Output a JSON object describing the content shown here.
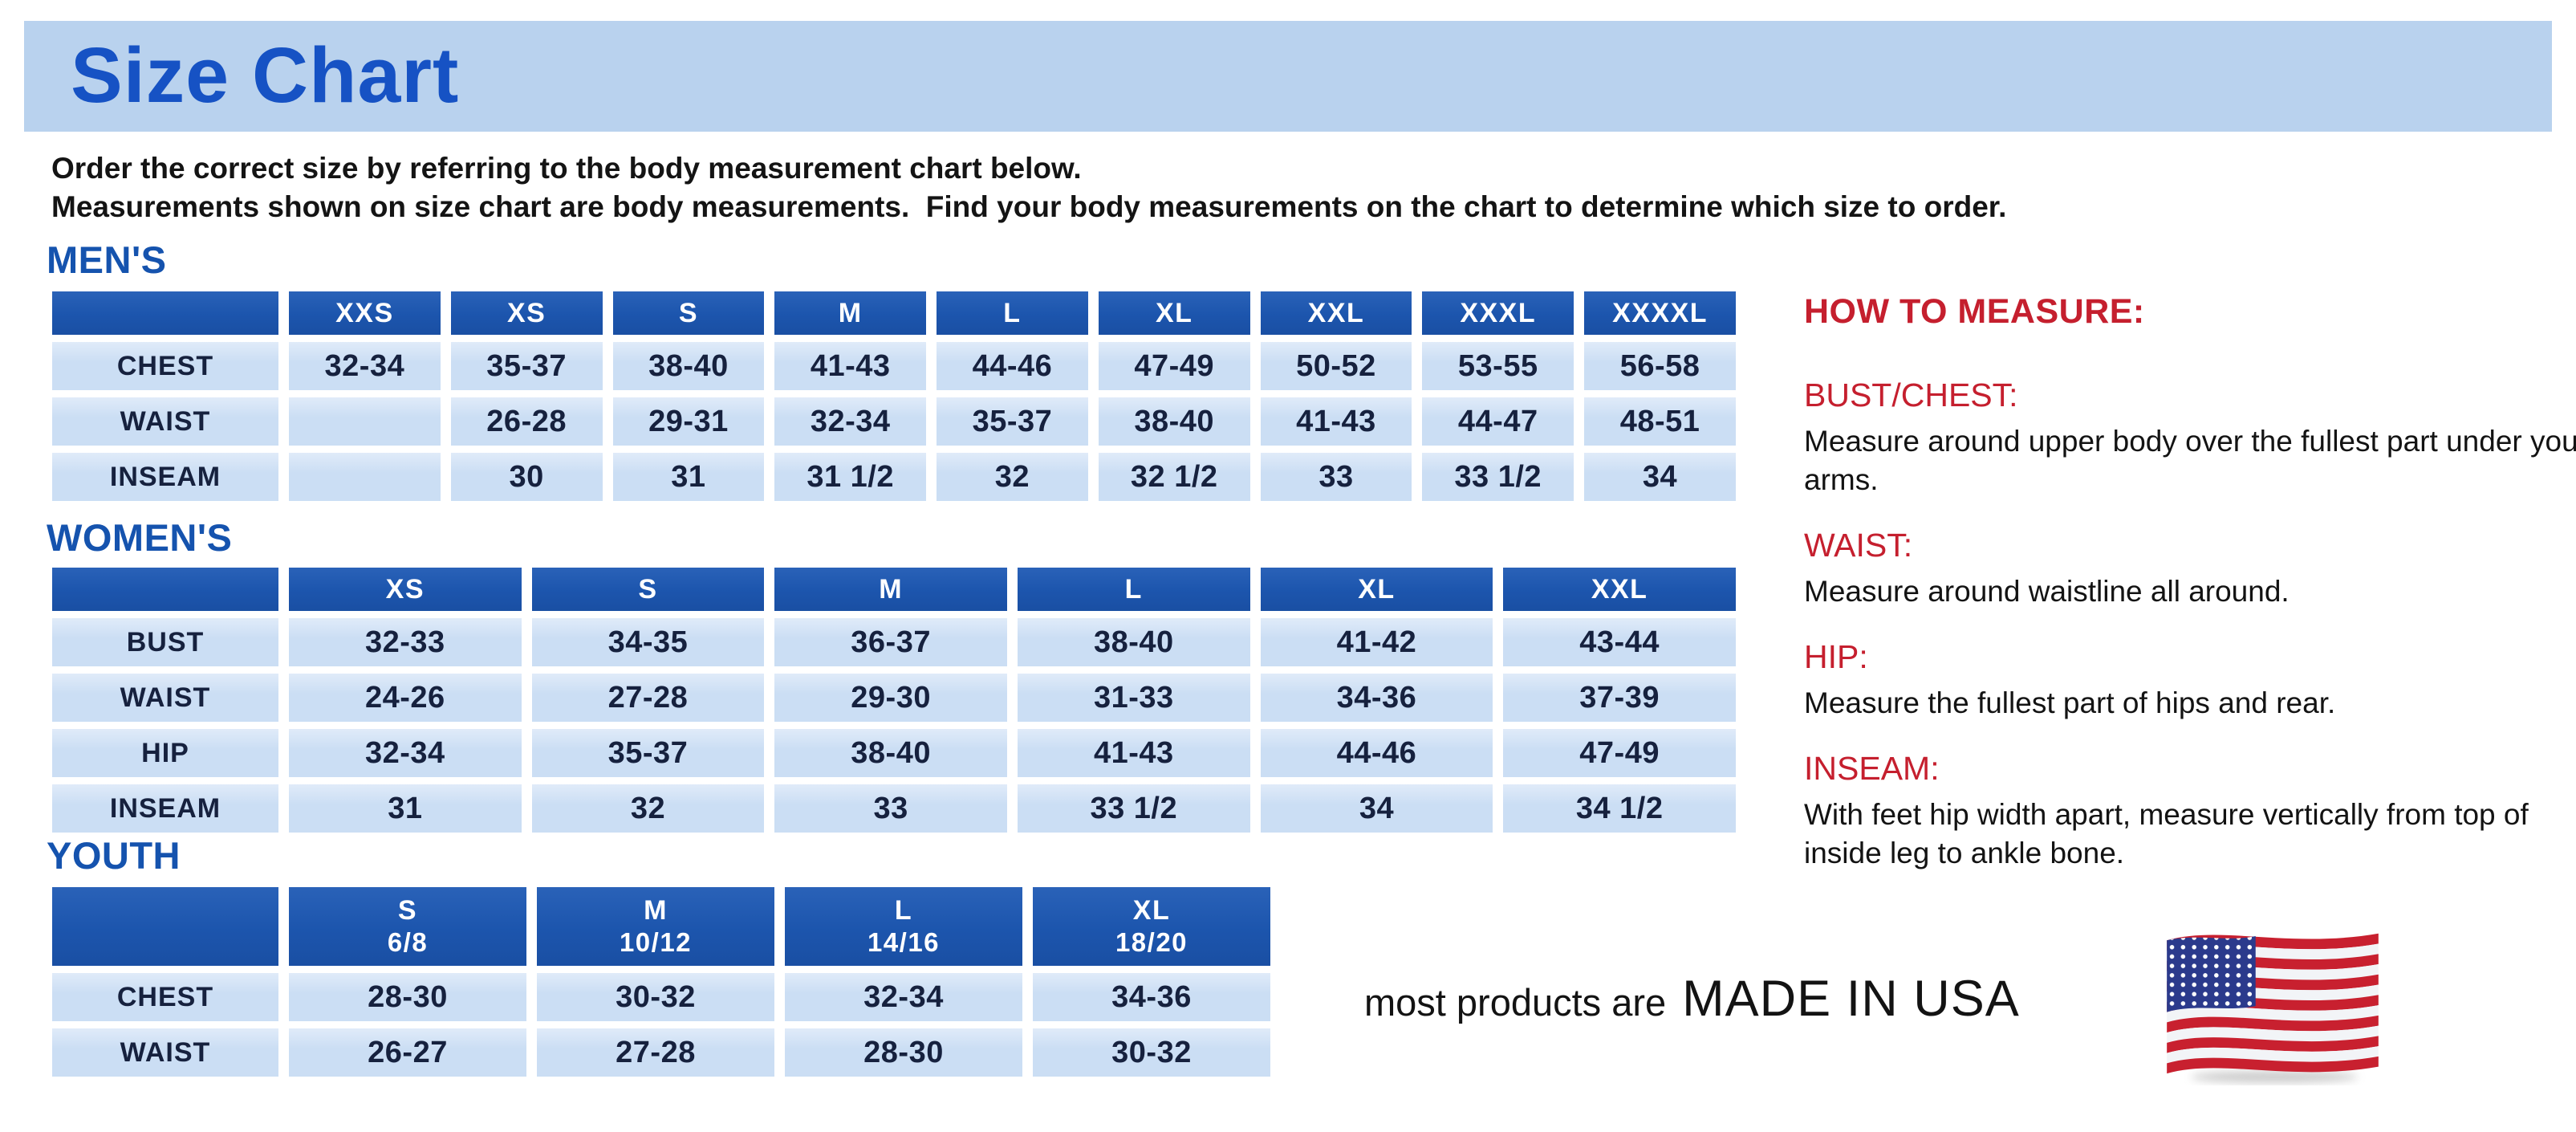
{
  "page": {
    "title": "Size Chart",
    "intro_line1": "Order the correct size by referring to the body measurement chart below.",
    "intro_line2": "Measurements shown on size chart are body measurements.  Find your body measurements on the chart to determine which size to order."
  },
  "colors": {
    "banner_bg": "#b9d2ee",
    "title_blue": "#1652c4",
    "heading_blue": "#1553ae",
    "header_bg": "#1c55ad",
    "cell_bg": "#cbdef4",
    "cell_bg_light": "#e0ebf9",
    "cell_text": "#16213e",
    "red": "#c51f2e",
    "flag_red": "#c8202f",
    "flag_navy": "#2b3a8c"
  },
  "tables": {
    "mens": {
      "heading": "MEN'S",
      "columns": [
        "XXS",
        "XS",
        "S",
        "M",
        "L",
        "XL",
        "XXL",
        "XXXL",
        "XXXXL"
      ],
      "rows": [
        {
          "label": "CHEST",
          "values": [
            "32-34",
            "35-37",
            "38-40",
            "41-43",
            "44-46",
            "47-49",
            "50-52",
            "53-55",
            "56-58"
          ]
        },
        {
          "label": "WAIST",
          "values": [
            "",
            "26-28",
            "29-31",
            "32-34",
            "35-37",
            "38-40",
            "41-43",
            "44-47",
            "48-51"
          ]
        },
        {
          "label": "INSEAM",
          "values": [
            "",
            "30",
            "31",
            "31 1/2",
            "32",
            "32 1/2",
            "33",
            "33 1/2",
            "34"
          ]
        }
      ]
    },
    "womens": {
      "heading": "WOMEN'S",
      "columns": [
        "XS",
        "S",
        "M",
        "L",
        "XL",
        "XXL"
      ],
      "rows": [
        {
          "label": "BUST",
          "values": [
            "32-33",
            "34-35",
            "36-37",
            "38-40",
            "41-42",
            "43-44"
          ]
        },
        {
          "label": "WAIST",
          "values": [
            "24-26",
            "27-28",
            "29-30",
            "31-33",
            "34-36",
            "37-39"
          ]
        },
        {
          "label": "HIP",
          "values": [
            "32-34",
            "35-37",
            "38-40",
            "41-43",
            "44-46",
            "47-49"
          ]
        },
        {
          "label": "INSEAM",
          "values": [
            "31",
            "32",
            "33",
            "33 1/2",
            "34",
            "34 1/2"
          ]
        }
      ]
    },
    "youth": {
      "heading": "YOUTH",
      "columns": [
        {
          "size": "S",
          "range": "6/8"
        },
        {
          "size": "M",
          "range": "10/12"
        },
        {
          "size": "L",
          "range": "14/16"
        },
        {
          "size": "XL",
          "range": "18/20"
        }
      ],
      "rows": [
        {
          "label": "CHEST",
          "values": [
            "28-30",
            "30-32",
            "32-34",
            "34-36"
          ]
        },
        {
          "label": "WAIST",
          "values": [
            "26-27",
            "27-28",
            "28-30",
            "30-32"
          ]
        }
      ]
    }
  },
  "how_to_measure": {
    "heading": "HOW TO MEASURE:",
    "sections": [
      {
        "label": "BUST/CHEST:",
        "text": "Measure around upper body over the fullest part under your arms."
      },
      {
        "label": "WAIST:",
        "text": "Measure around waistline all around."
      },
      {
        "label": "HIP:",
        "text": "Measure the fullest part of hips and rear."
      },
      {
        "label": "INSEAM:",
        "text": "With feet hip width apart, measure vertically from top of inside leg to ankle bone."
      }
    ]
  },
  "footer": {
    "made_in_prefix": "most products are",
    "made_in_main": "MADE IN USA",
    "flag_icon": "us-flag-icon"
  }
}
